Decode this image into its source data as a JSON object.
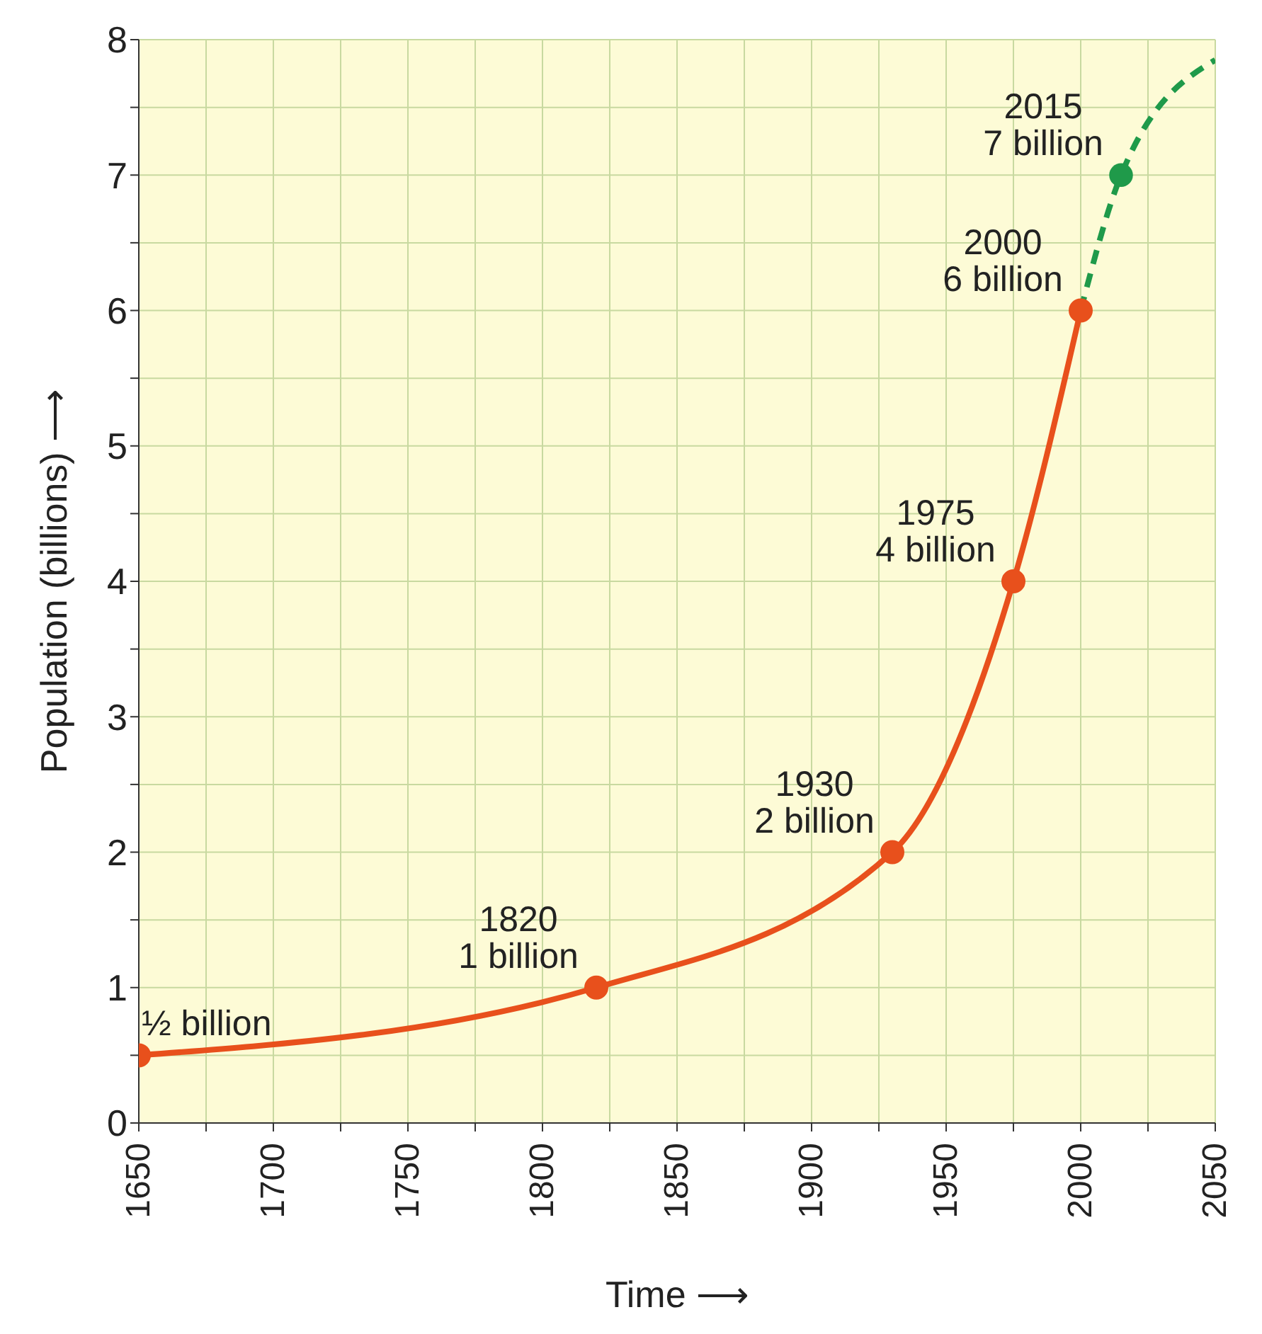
{
  "chart_data": {
    "type": "line",
    "xlabel": "Time ⟶",
    "ylabel": "Population (billions) ⟶",
    "xlim": [
      1650,
      2050
    ],
    "xticks": [
      1650,
      {
        "value": 1675,
        "label": null
      },
      1700,
      {
        "value": 1725,
        "label": null
      },
      1750,
      {
        "value": 1775,
        "label": null
      },
      1800,
      {
        "value": 1825,
        "label": null
      },
      1850,
      {
        "value": 1875,
        "label": null
      },
      1900,
      {
        "value": 1925,
        "label": null
      },
      1950,
      {
        "value": 1975,
        "label": null
      },
      2000,
      {
        "value": 2025,
        "label": null
      },
      2050
    ],
    "ylim": [
      0,
      8
    ],
    "yticks": [
      0,
      {
        "value": 0.5,
        "label": null
      },
      1,
      {
        "value": 1.5,
        "label": null
      },
      2,
      {
        "value": 2.5,
        "label": null
      },
      3,
      {
        "value": 3.5,
        "label": null
      },
      4,
      {
        "value": 4.5,
        "label": null
      },
      5,
      {
        "value": 5.5,
        "label": null
      },
      6,
      {
        "value": 6.5,
        "label": null
      },
      7,
      {
        "value": 7.5,
        "label": null
      },
      8
    ],
    "grid": true,
    "series": [
      {
        "type": "line",
        "color": "#e8501c",
        "x": [
          1650,
          1820,
          1930,
          1975,
          2000
        ],
        "values": [
          0.5,
          1,
          2,
          4,
          6
        ],
        "marker": "circle",
        "line_style": "solid"
      },
      {
        "type": "line",
        "color": "#1f9a4a",
        "x": [
          2000,
          2015,
          2050
        ],
        "values": [
          6,
          7,
          7.85
        ],
        "marker": "none",
        "line_style": "dashed"
      },
      {
        "type": "scatter",
        "color": "#1f9a4a",
        "x": [
          2015
        ],
        "values": [
          7
        ],
        "marker": "circle"
      }
    ],
    "annotations": [
      {
        "text": "½ billion",
        "x": 1650,
        "y": 0.5
      },
      {
        "text": "1820\n1 billion",
        "x": 1820,
        "y": 1
      },
      {
        "text": "1930\n2 billion",
        "x": 1930,
        "y": 2
      },
      {
        "text": "1975\n4 billion",
        "x": 1975,
        "y": 4
      },
      {
        "text": "2000\n6 billion",
        "x": 2000,
        "y": 6
      },
      {
        "text": "2015\n7 billion",
        "x": 2015,
        "y": 7
      }
    ]
  }
}
